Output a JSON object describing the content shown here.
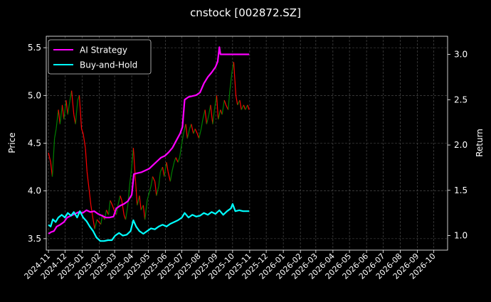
{
  "chart_data": {
    "type": "line",
    "title": "cnstock [002872.SZ]",
    "x_tick_labels": [
      "2024-11",
      "2024-12",
      "2025-01",
      "2025-02",
      "2025-03",
      "2025-04",
      "2025-05",
      "2025-06",
      "2025-07",
      "2025-08",
      "2025-09",
      "2025-10",
      "2025-11",
      "2025-12",
      "2026-01",
      "2026-02",
      "2026-03",
      "2026-04",
      "2026-05",
      "2026-06",
      "2026-07",
      "2026-08",
      "2026-09",
      "2026-10"
    ],
    "xlim": [
      "2024-10-28",
      "2026-10-26"
    ],
    "y_left": {
      "label": "Price",
      "ticks": [
        "3.5",
        "4.0",
        "4.5",
        "5.0",
        "5.5"
      ],
      "ylim": [
        3.38,
        5.62
      ]
    },
    "y_right": {
      "label": "Return",
      "ticks": [
        "1.0",
        "1.5",
        "2.0",
        "2.5",
        "3.0"
      ],
      "ylim": [
        0.84,
        3.2
      ]
    },
    "grid": true,
    "legend_placement": "top-left",
    "price_series": {
      "up_color": "#008000",
      "down_color": "#ff0000",
      "points": [
        [
          "2024-11-01",
          4.4
        ],
        [
          "2024-11-05",
          4.3
        ],
        [
          "2024-11-08",
          4.15
        ],
        [
          "2024-11-12",
          4.55
        ],
        [
          "2024-11-15",
          4.65
        ],
        [
          "2024-11-19",
          4.85
        ],
        [
          "2024-11-22",
          4.7
        ],
        [
          "2024-11-26",
          4.9
        ],
        [
          "2024-11-29",
          4.75
        ],
        [
          "2024-12-03",
          4.95
        ],
        [
          "2024-12-06",
          4.8
        ],
        [
          "2024-12-10",
          4.95
        ],
        [
          "2024-12-13",
          5.05
        ],
        [
          "2024-12-17",
          4.8
        ],
        [
          "2024-12-20",
          4.7
        ],
        [
          "2024-12-24",
          4.95
        ],
        [
          "2024-12-27",
          5.0
        ],
        [
          "2024-12-31",
          4.65
        ],
        [
          "2025-01-03",
          4.6
        ],
        [
          "2025-01-07",
          4.45
        ],
        [
          "2025-01-10",
          4.2
        ],
        [
          "2025-01-14",
          4.0
        ],
        [
          "2025-01-17",
          3.85
        ],
        [
          "2025-01-21",
          3.7
        ],
        [
          "2025-01-24",
          3.6
        ],
        [
          "2025-01-28",
          3.7
        ],
        [
          "2025-02-04",
          3.65
        ],
        [
          "2025-02-07",
          3.75
        ],
        [
          "2025-02-11",
          3.7
        ],
        [
          "2025-02-14",
          3.8
        ],
        [
          "2025-02-18",
          3.75
        ],
        [
          "2025-02-21",
          3.9
        ],
        [
          "2025-02-25",
          3.85
        ],
        [
          "2025-02-28",
          3.8
        ],
        [
          "2025-03-04",
          3.75
        ],
        [
          "2025-03-07",
          3.85
        ],
        [
          "2025-03-11",
          3.95
        ],
        [
          "2025-03-14",
          3.9
        ],
        [
          "2025-03-18",
          3.75
        ],
        [
          "2025-03-21",
          3.7
        ],
        [
          "2025-03-25",
          3.85
        ],
        [
          "2025-03-28",
          4.05
        ],
        [
          "2025-04-01",
          4.25
        ],
        [
          "2025-04-04",
          4.45
        ],
        [
          "2025-04-08",
          4.1
        ],
        [
          "2025-04-11",
          3.85
        ],
        [
          "2025-04-15",
          3.95
        ],
        [
          "2025-04-18",
          3.8
        ],
        [
          "2025-04-22",
          3.85
        ],
        [
          "2025-04-25",
          3.7
        ],
        [
          "2025-04-29",
          3.9
        ],
        [
          "2025-05-06",
          4.05
        ],
        [
          "2025-05-09",
          4.15
        ],
        [
          "2025-05-13",
          4.1
        ],
        [
          "2025-05-16",
          3.95
        ],
        [
          "2025-05-20",
          4.05
        ],
        [
          "2025-05-23",
          4.2
        ],
        [
          "2025-05-27",
          4.25
        ],
        [
          "2025-05-30",
          4.15
        ],
        [
          "2025-06-03",
          4.3
        ],
        [
          "2025-06-06",
          4.2
        ],
        [
          "2025-06-10",
          4.1
        ],
        [
          "2025-06-13",
          4.2
        ],
        [
          "2025-06-17",
          4.3
        ],
        [
          "2025-06-20",
          4.35
        ],
        [
          "2025-06-24",
          4.3
        ],
        [
          "2025-06-27",
          4.35
        ],
        [
          "2025-07-01",
          4.5
        ],
        [
          "2025-07-04",
          4.6
        ],
        [
          "2025-07-08",
          4.7
        ],
        [
          "2025-07-11",
          4.55
        ],
        [
          "2025-07-15",
          4.65
        ],
        [
          "2025-07-18",
          4.7
        ],
        [
          "2025-07-22",
          4.6
        ],
        [
          "2025-07-25",
          4.65
        ],
        [
          "2025-07-29",
          4.6
        ],
        [
          "2025-08-01",
          4.55
        ],
        [
          "2025-08-05",
          4.65
        ],
        [
          "2025-08-08",
          4.75
        ],
        [
          "2025-08-12",
          4.85
        ],
        [
          "2025-08-15",
          4.7
        ],
        [
          "2025-08-19",
          4.8
        ],
        [
          "2025-08-22",
          4.9
        ],
        [
          "2025-08-26",
          4.7
        ],
        [
          "2025-08-29",
          4.85
        ],
        [
          "2025-09-02",
          5.0
        ],
        [
          "2025-09-05",
          4.75
        ],
        [
          "2025-09-09",
          4.85
        ],
        [
          "2025-09-12",
          4.8
        ],
        [
          "2025-09-16",
          4.95
        ],
        [
          "2025-09-19",
          4.9
        ],
        [
          "2025-09-23",
          4.85
        ],
        [
          "2025-09-26",
          5.05
        ],
        [
          "2025-09-30",
          5.25
        ],
        [
          "2025-10-03",
          5.35
        ],
        [
          "2025-10-07",
          5.0
        ],
        [
          "2025-10-10",
          4.9
        ],
        [
          "2025-10-14",
          4.95
        ],
        [
          "2025-10-17",
          4.85
        ],
        [
          "2025-10-21",
          4.9
        ],
        [
          "2025-10-24",
          4.85
        ],
        [
          "2025-10-28",
          4.9
        ],
        [
          "2025-10-31",
          4.85
        ]
      ]
    },
    "series": [
      {
        "name": "AI Strategy",
        "color": "#ff00ff",
        "points": [
          [
            "2024-11-01",
            1.02
          ],
          [
            "2024-11-06",
            1.04
          ],
          [
            "2024-11-11",
            1.05
          ],
          [
            "2024-11-16",
            1.1
          ],
          [
            "2024-11-22",
            1.12
          ],
          [
            "2024-11-29",
            1.15
          ],
          [
            "2024-12-05",
            1.2
          ],
          [
            "2024-12-12",
            1.22
          ],
          [
            "2024-12-19",
            1.24
          ],
          [
            "2024-12-26",
            1.26
          ],
          [
            "2025-01-02",
            1.25
          ],
          [
            "2025-01-09",
            1.28
          ],
          [
            "2025-01-16",
            1.26
          ],
          [
            "2025-01-23",
            1.27
          ],
          [
            "2025-01-30",
            1.24
          ],
          [
            "2025-02-06",
            1.22
          ],
          [
            "2025-02-13",
            1.2
          ],
          [
            "2025-02-20",
            1.2
          ],
          [
            "2025-02-27",
            1.21
          ],
          [
            "2025-03-04",
            1.3
          ],
          [
            "2025-03-11",
            1.33
          ],
          [
            "2025-03-18",
            1.35
          ],
          [
            "2025-03-25",
            1.38
          ],
          [
            "2025-04-01",
            1.45
          ],
          [
            "2025-04-05",
            1.68
          ],
          [
            "2025-04-12",
            1.69
          ],
          [
            "2025-04-19",
            1.7
          ],
          [
            "2025-04-26",
            1.72
          ],
          [
            "2025-05-03",
            1.74
          ],
          [
            "2025-05-10",
            1.78
          ],
          [
            "2025-05-17",
            1.82
          ],
          [
            "2025-05-24",
            1.86
          ],
          [
            "2025-05-31",
            1.88
          ],
          [
            "2025-06-07",
            1.92
          ],
          [
            "2025-06-14",
            1.97
          ],
          [
            "2025-06-21",
            2.05
          ],
          [
            "2025-06-28",
            2.13
          ],
          [
            "2025-07-02",
            2.2
          ],
          [
            "2025-07-06",
            2.5
          ],
          [
            "2025-07-13",
            2.53
          ],
          [
            "2025-07-20",
            2.54
          ],
          [
            "2025-07-27",
            2.55
          ],
          [
            "2025-08-03",
            2.58
          ],
          [
            "2025-08-10",
            2.68
          ],
          [
            "2025-08-17",
            2.75
          ],
          [
            "2025-08-24",
            2.8
          ],
          [
            "2025-08-31",
            2.86
          ],
          [
            "2025-09-04",
            2.92
          ],
          [
            "2025-09-07",
            3.08
          ],
          [
            "2025-09-09",
            3.0
          ],
          [
            "2025-09-15",
            3.0
          ],
          [
            "2025-10-01",
            3.0
          ],
          [
            "2025-10-31",
            3.0
          ]
        ]
      },
      {
        "name": "Buy-and-Hold",
        "color": "#00ffff",
        "points": [
          [
            "2024-11-01",
            1.12
          ],
          [
            "2024-11-05",
            1.1
          ],
          [
            "2024-11-09",
            1.18
          ],
          [
            "2024-11-14",
            1.15
          ],
          [
            "2024-11-19",
            1.2
          ],
          [
            "2024-11-25",
            1.23
          ],
          [
            "2024-12-01",
            1.2
          ],
          [
            "2024-12-06",
            1.25
          ],
          [
            "2024-12-12",
            1.22
          ],
          [
            "2024-12-17",
            1.26
          ],
          [
            "2024-12-23",
            1.2
          ],
          [
            "2024-12-28",
            1.27
          ],
          [
            "2025-01-03",
            1.2
          ],
          [
            "2025-01-09",
            1.16
          ],
          [
            "2025-01-15",
            1.1
          ],
          [
            "2025-01-21",
            1.05
          ],
          [
            "2025-01-27",
            0.98
          ],
          [
            "2025-02-03",
            0.94
          ],
          [
            "2025-02-10",
            0.94
          ],
          [
            "2025-02-17",
            0.95
          ],
          [
            "2025-02-24",
            0.95
          ],
          [
            "2025-03-02",
            1.0
          ],
          [
            "2025-03-09",
            1.03
          ],
          [
            "2025-03-16",
            1.0
          ],
          [
            "2025-03-23",
            1.01
          ],
          [
            "2025-03-30",
            1.05
          ],
          [
            "2025-04-04",
            1.17
          ],
          [
            "2025-04-09",
            1.1
          ],
          [
            "2025-04-15",
            1.05
          ],
          [
            "2025-04-22",
            1.02
          ],
          [
            "2025-04-29",
            1.05
          ],
          [
            "2025-05-06",
            1.08
          ],
          [
            "2025-05-13",
            1.07
          ],
          [
            "2025-05-20",
            1.1
          ],
          [
            "2025-05-27",
            1.12
          ],
          [
            "2025-06-03",
            1.1
          ],
          [
            "2025-06-10",
            1.13
          ],
          [
            "2025-06-17",
            1.15
          ],
          [
            "2025-06-24",
            1.17
          ],
          [
            "2025-07-01",
            1.2
          ],
          [
            "2025-07-06",
            1.25
          ],
          [
            "2025-07-13",
            1.2
          ],
          [
            "2025-07-20",
            1.23
          ],
          [
            "2025-07-27",
            1.21
          ],
          [
            "2025-08-03",
            1.22
          ],
          [
            "2025-08-10",
            1.25
          ],
          [
            "2025-08-17",
            1.23
          ],
          [
            "2025-08-24",
            1.26
          ],
          [
            "2025-08-31",
            1.24
          ],
          [
            "2025-09-07",
            1.28
          ],
          [
            "2025-09-14",
            1.23
          ],
          [
            "2025-09-21",
            1.27
          ],
          [
            "2025-09-28",
            1.3
          ],
          [
            "2025-10-01",
            1.35
          ],
          [
            "2025-10-06",
            1.27
          ],
          [
            "2025-10-13",
            1.28
          ],
          [
            "2025-10-20",
            1.27
          ],
          [
            "2025-10-31",
            1.27
          ]
        ]
      }
    ]
  }
}
